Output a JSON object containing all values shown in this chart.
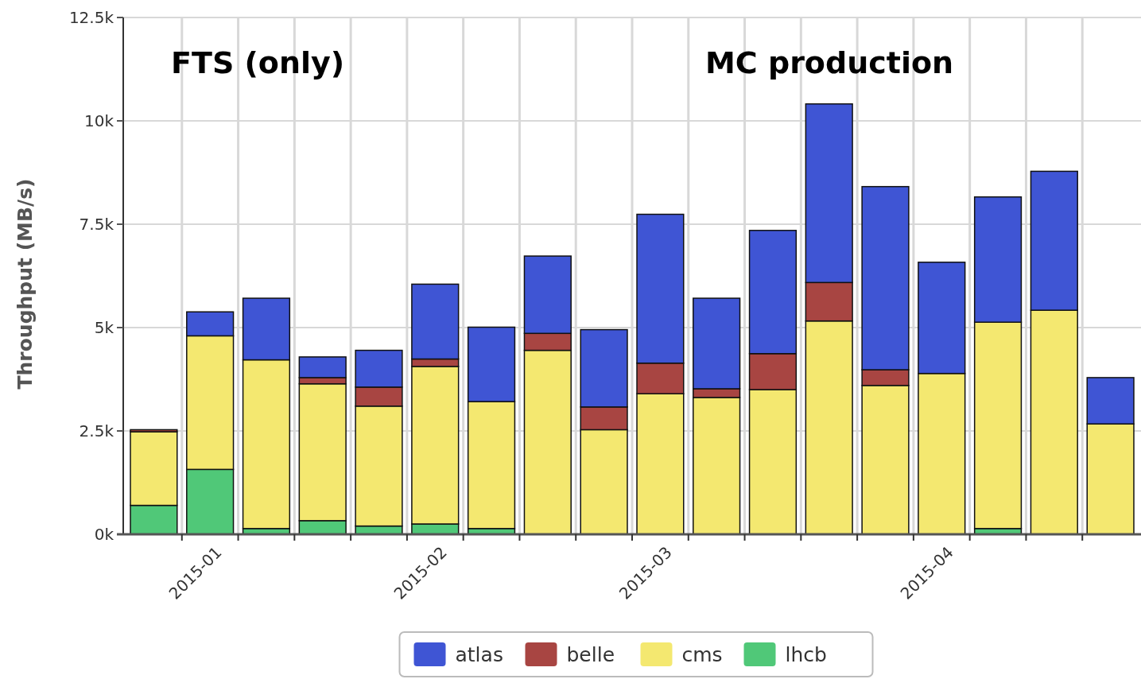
{
  "chart_data": {
    "type": "bar",
    "stacked": true,
    "ylabel": "Throughput (MB/s)",
    "annotations": [
      "FTS (only)",
      "MC production"
    ],
    "categories": [
      null,
      "2015-01",
      null,
      null,
      null,
      "2015-02",
      null,
      null,
      null,
      "2015-03",
      null,
      null,
      null,
      null,
      "2015-04",
      null,
      null,
      null
    ],
    "ylim": [
      0,
      12500
    ],
    "yticks": [
      {
        "value": 0,
        "label": "0k"
      },
      {
        "value": 2500,
        "label": "2.5k"
      },
      {
        "value": 5000,
        "label": "5k"
      },
      {
        "value": 7500,
        "label": "7.5k"
      },
      {
        "value": 10000,
        "label": "10k"
      },
      {
        "value": 12500,
        "label": "12.5k"
      }
    ],
    "grid": true,
    "legend": "bottom",
    "series": [
      {
        "name": "lhcb",
        "color": "#50c878",
        "values": [
          700,
          1570,
          140,
          330,
          200,
          250,
          140,
          null,
          null,
          null,
          null,
          null,
          null,
          null,
          null,
          140,
          null,
          null
        ]
      },
      {
        "name": "cms",
        "color": "#f4e870",
        "values": [
          1780,
          3230,
          4080,
          3310,
          2900,
          3810,
          3070,
          4450,
          2530,
          3400,
          3310,
          3500,
          5160,
          3600,
          3890,
          4990,
          5420,
          2670
        ]
      },
      {
        "name": "belle",
        "color": "#a84542",
        "values": [
          50,
          null,
          null,
          150,
          460,
          180,
          null,
          410,
          550,
          740,
          210,
          870,
          930,
          380,
          null,
          null,
          null,
          null
        ]
      },
      {
        "name": "atlas",
        "color": "#3f55d4",
        "values": [
          null,
          580,
          1490,
          500,
          890,
          1810,
          1800,
          1870,
          1870,
          3600,
          2190,
          2980,
          4320,
          4430,
          2690,
          3030,
          3360,
          1120
        ]
      }
    ]
  }
}
